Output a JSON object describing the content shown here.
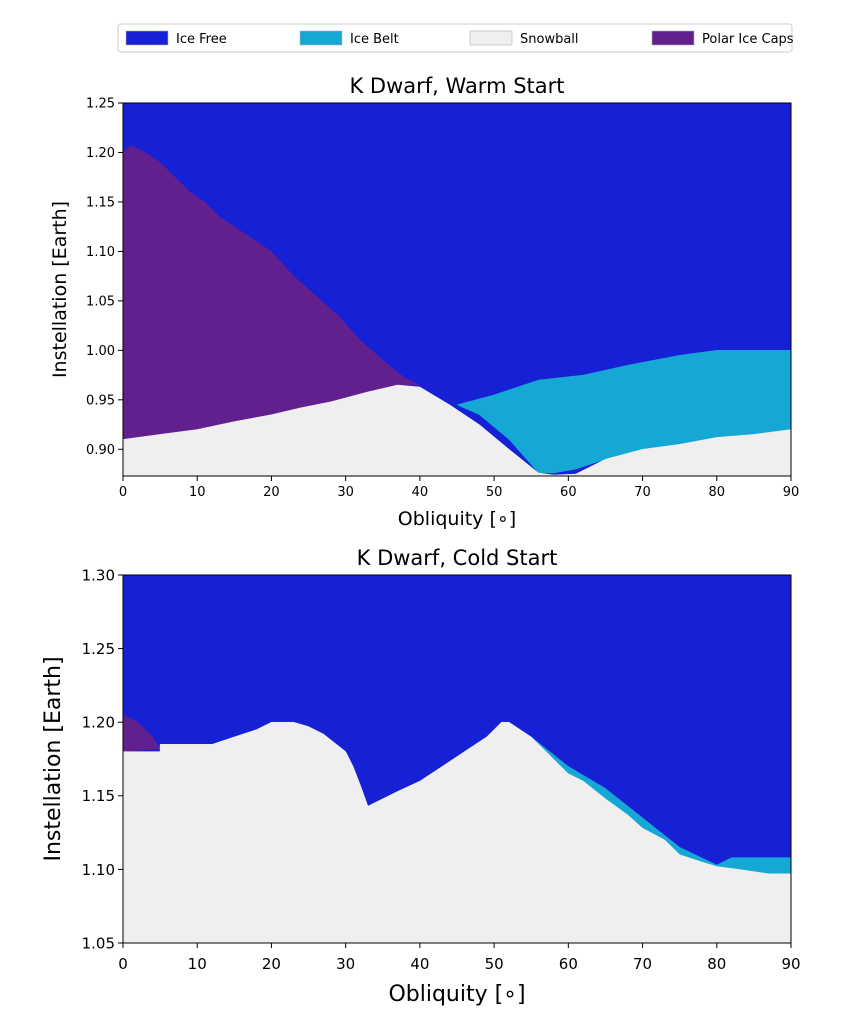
{
  "legend": {
    "placement": "top",
    "entries": [
      {
        "label": "Ice Free",
        "color": "#1620d4"
      },
      {
        "label": "Ice Belt",
        "color": "#16a8d4"
      },
      {
        "label": "Snowball",
        "color": "#efefef"
      },
      {
        "label": "Polar Ice Caps",
        "color": "#62208e"
      }
    ]
  },
  "chart_data": [
    {
      "type": "area",
      "title": "K Dwarf, Warm Start",
      "xlabel": "Obliquity [∘]",
      "ylabel": "Instellation [Earth]",
      "xlim": [
        0,
        90
      ],
      "ylim": [
        0.873,
        1.25
      ],
      "xticks": [
        0,
        10,
        20,
        30,
        40,
        50,
        60,
        70,
        80,
        90
      ],
      "yticks": [
        0.9,
        0.95,
        1.0,
        1.05,
        1.1,
        1.15,
        1.2,
        1.25
      ],
      "ytick_labels": [
        "0.90",
        "0.95",
        "1.00",
        "1.05",
        "1.10",
        "1.15",
        "1.20",
        "1.25"
      ],
      "grid": false,
      "regions": [
        {
          "name": "Ice Free",
          "color": "#1620d4",
          "polygon": [
            [
              0,
              0.873
            ],
            [
              90,
              0.873
            ],
            [
              90,
              1.25
            ],
            [
              0,
              1.25
            ]
          ]
        },
        {
          "name": "Ice Belt",
          "color": "#16a8d4",
          "polygon": [
            [
              45,
              0.945
            ],
            [
              50,
              0.955
            ],
            [
              56,
              0.97
            ],
            [
              62,
              0.975
            ],
            [
              68,
              0.985
            ],
            [
              75,
              0.995
            ],
            [
              80,
              1.0
            ],
            [
              90,
              1.0
            ],
            [
              90,
              0.92
            ],
            [
              85,
              0.915
            ],
            [
              80,
              0.912
            ],
            [
              75,
              0.905
            ],
            [
              70,
              0.9
            ],
            [
              65,
              0.89
            ],
            [
              61,
              0.88
            ],
            [
              58,
              0.876
            ],
            [
              56,
              0.876
            ],
            [
              52,
              0.91
            ],
            [
              48,
              0.935
            ]
          ]
        },
        {
          "name": "Polar Ice Caps",
          "color": "#62208e",
          "polygon": [
            [
              0,
              1.2
            ],
            [
              1,
              1.207
            ],
            [
              3,
              1.2
            ],
            [
              5,
              1.19
            ],
            [
              7,
              1.175
            ],
            [
              9,
              1.16
            ],
            [
              11,
              1.15
            ],
            [
              13,
              1.135
            ],
            [
              15,
              1.125
            ],
            [
              17,
              1.115
            ],
            [
              20,
              1.1
            ],
            [
              23,
              1.075
            ],
            [
              26,
              1.055
            ],
            [
              29,
              1.035
            ],
            [
              32,
              1.01
            ],
            [
              35,
              0.99
            ],
            [
              38,
              0.972
            ],
            [
              40,
              0.965
            ],
            [
              37,
              0.965
            ],
            [
              33,
              0.958
            ],
            [
              28,
              0.948
            ],
            [
              24,
              0.942
            ],
            [
              20,
              0.935
            ],
            [
              15,
              0.928
            ],
            [
              10,
              0.92
            ],
            [
              5,
              0.915
            ],
            [
              0,
              0.91
            ]
          ]
        },
        {
          "name": "Snowball",
          "color": "#efefef",
          "polygon": [
            [
              0,
              0.91
            ],
            [
              5,
              0.915
            ],
            [
              10,
              0.92
            ],
            [
              15,
              0.928
            ],
            [
              20,
              0.935
            ],
            [
              24,
              0.942
            ],
            [
              28,
              0.948
            ],
            [
              33,
              0.958
            ],
            [
              37,
              0.965
            ],
            [
              40,
              0.963
            ],
            [
              44,
              0.945
            ],
            [
              48,
              0.925
            ],
            [
              52,
              0.9
            ],
            [
              56,
              0.876
            ],
            [
              58,
              0.874
            ],
            [
              61,
              0.875
            ],
            [
              65,
              0.89
            ],
            [
              70,
              0.9
            ],
            [
              75,
              0.905
            ],
            [
              80,
              0.912
            ],
            [
              85,
              0.915
            ],
            [
              90,
              0.92
            ],
            [
              90,
              0.873
            ],
            [
              0,
              0.873
            ]
          ]
        }
      ]
    },
    {
      "type": "area",
      "title": "K Dwarf, Cold Start",
      "xlabel": "Obliquity [∘]",
      "ylabel": "Instellation [Earth]",
      "xlim": [
        0,
        90
      ],
      "ylim": [
        1.05,
        1.3
      ],
      "xticks": [
        0,
        10,
        20,
        30,
        40,
        50,
        60,
        70,
        80,
        90
      ],
      "yticks": [
        1.05,
        1.1,
        1.15,
        1.2,
        1.25,
        1.3
      ],
      "ytick_labels": [
        "1.05",
        "1.10",
        "1.15",
        "1.20",
        "1.25",
        "1.30"
      ],
      "grid": false,
      "regions": [
        {
          "name": "Ice Free",
          "color": "#1620d4",
          "polygon": [
            [
              0,
              1.05
            ],
            [
              90,
              1.05
            ],
            [
              90,
              1.3
            ],
            [
              0,
              1.3
            ]
          ]
        },
        {
          "name": "Polar Ice Caps",
          "color": "#62208e",
          "polygon": [
            [
              0,
              1.18
            ],
            [
              0,
              1.205
            ],
            [
              2,
              1.2
            ],
            [
              4,
              1.19
            ],
            [
              5,
              1.182
            ]
          ]
        },
        {
          "name": "Ice Belt",
          "color": "#16a8d4",
          "polygon": [
            [
              55,
              1.19
            ],
            [
              60,
              1.17
            ],
            [
              65,
              1.155
            ],
            [
              70,
              1.135
            ],
            [
              75,
              1.115
            ],
            [
              80,
              1.103
            ],
            [
              82,
              1.108
            ],
            [
              90,
              1.108
            ],
            [
              90,
              1.097
            ],
            [
              87,
              1.097
            ],
            [
              80,
              1.102
            ],
            [
              75,
              1.108
            ],
            [
              70,
              1.125
            ],
            [
              65,
              1.148
            ],
            [
              60,
              1.165
            ],
            [
              55,
              1.187
            ]
          ]
        },
        {
          "name": "Snowball",
          "color": "#efefef",
          "polygon": [
            [
              0,
              1.05
            ],
            [
              0,
              1.18
            ],
            [
              5,
              1.18
            ],
            [
              5,
              1.185
            ],
            [
              12,
              1.185
            ],
            [
              15,
              1.19
            ],
            [
              18,
              1.195
            ],
            [
              20,
              1.2
            ],
            [
              23,
              1.2
            ],
            [
              25,
              1.197
            ],
            [
              27,
              1.192
            ],
            [
              30,
              1.18
            ],
            [
              31,
              1.17
            ],
            [
              32,
              1.157
            ],
            [
              33,
              1.143
            ],
            [
              35,
              1.148
            ],
            [
              37,
              1.153
            ],
            [
              40,
              1.16
            ],
            [
              43,
              1.17
            ],
            [
              46,
              1.18
            ],
            [
              49,
              1.19
            ],
            [
              51,
              1.2
            ],
            [
              52,
              1.2
            ],
            [
              55,
              1.19
            ],
            [
              58,
              1.175
            ],
            [
              60,
              1.165
            ],
            [
              62,
              1.16
            ],
            [
              65,
              1.148
            ],
            [
              68,
              1.137
            ],
            [
              70,
              1.128
            ],
            [
              73,
              1.12
            ],
            [
              75,
              1.11
            ],
            [
              78,
              1.105
            ],
            [
              80,
              1.102
            ],
            [
              83,
              1.1
            ],
            [
              87,
              1.097
            ],
            [
              90,
              1.097
            ],
            [
              90,
              1.05
            ]
          ]
        }
      ]
    }
  ]
}
